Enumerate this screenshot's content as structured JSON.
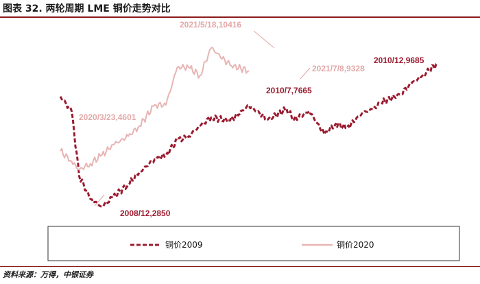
{
  "header": {
    "title": "图表 32. 两轮周期 LME 铜价走势对比"
  },
  "footer": {
    "source": "资料来源：万得，中银证券"
  },
  "chart_data": {
    "type": "line",
    "title": "图表 32. 两轮周期 LME 铜价走势对比",
    "xlabel": "",
    "ylabel": "",
    "grid": false,
    "legend": "bottom",
    "colors": {
      "series_2009": "#9b1b30",
      "series_2020": "#e8b4b4",
      "text_2009": "#9b1b30",
      "text_2020": "#e3a8a8"
    },
    "x": [
      0,
      3,
      5,
      8,
      11,
      14,
      18,
      21,
      25,
      28,
      31,
      34,
      37,
      40,
      45,
      50,
      55,
      60,
      62,
      66,
      70,
      73,
      76,
      80,
      83,
      85,
      90,
      93,
      96,
      100
    ],
    "series": [
      {
        "name": "铜价2009",
        "style": "dashed",
        "values": [
          8100,
          7400,
          4300,
          3200,
          2850,
          3300,
          3900,
          4500,
          5100,
          5300,
          6000,
          6200,
          6700,
          7100,
          6950,
          7665,
          7000,
          7500,
          7000,
          7400,
          6300,
          6800,
          6600,
          7300,
          7500,
          7800,
          8200,
          8700,
          9100,
          9685
        ]
      },
      {
        "name": "铜价2020",
        "style": "solid",
        "values": [
          5500,
          5000,
          4601,
          4900,
          5300,
          5800,
          6200,
          6700,
          7700,
          7700,
          9500,
          9500,
          9100,
          10416,
          9600,
          9328,
          null,
          null,
          null,
          null,
          null,
          null,
          null,
          null,
          null,
          null,
          null,
          null,
          null,
          null
        ]
      }
    ],
    "annotations": [
      {
        "text": "2020/3/23,4601",
        "series": "铜价2020"
      },
      {
        "text": "2021/5/18,10416",
        "series": "铜价2020"
      },
      {
        "text": "2021/7/8,9328",
        "series": "铜价2020"
      },
      {
        "text": "2008/12,2850",
        "series": "铜价2009"
      },
      {
        "text": "2010/7,7665",
        "series": "铜价2009"
      },
      {
        "text": "2010/12,9685",
        "series": "铜价2009"
      }
    ]
  }
}
